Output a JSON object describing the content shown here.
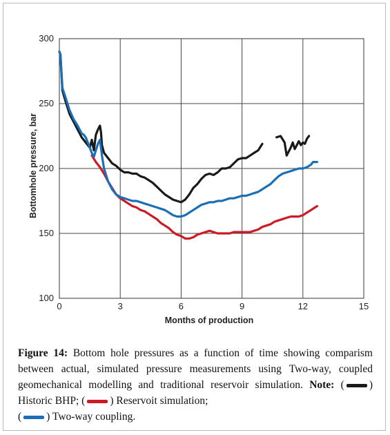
{
  "chart_data": {
    "type": "line",
    "xlabel": "Months of production",
    "ylabel": "Bottomhole pressure, bar",
    "xlim": [
      0,
      15
    ],
    "ylim": [
      100,
      300
    ],
    "xticks": [
      0,
      3,
      6,
      9,
      12,
      15
    ],
    "yticks": [
      100,
      150,
      200,
      250,
      300
    ],
    "grid": true,
    "series": [
      {
        "name": "Historic BHP",
        "color": "#1a1a1a",
        "segments": [
          [
            [
              0.0,
              290
            ],
            [
              0.05,
              288
            ],
            [
              0.15,
              260
            ],
            [
              0.3,
              252
            ],
            [
              0.5,
              242
            ],
            [
              0.7,
              236
            ],
            [
              0.9,
              230
            ],
            [
              1.0,
              227
            ],
            [
              1.1,
              224
            ],
            [
              1.2,
              222
            ],
            [
              1.3,
              220
            ],
            [
              1.4,
              218
            ],
            [
              1.5,
              216
            ],
            [
              1.6,
              222
            ],
            [
              1.7,
              214
            ],
            [
              1.8,
              226
            ],
            [
              1.9,
              230
            ],
            [
              2.0,
              233
            ],
            [
              2.05,
              228
            ],
            [
              2.1,
              218
            ],
            [
              2.2,
              212
            ],
            [
              2.4,
              208
            ],
            [
              2.6,
              204
            ],
            [
              2.8,
              202
            ],
            [
              3.0,
              199
            ],
            [
              3.2,
              197
            ],
            [
              3.4,
              197
            ],
            [
              3.6,
              196
            ],
            [
              3.8,
              196
            ],
            [
              4.0,
              194
            ],
            [
              4.2,
              193
            ],
            [
              4.4,
              191
            ],
            [
              4.6,
              189
            ],
            [
              4.8,
              186
            ],
            [
              5.0,
              183
            ],
            [
              5.2,
              180
            ],
            [
              5.4,
              178
            ],
            [
              5.6,
              176
            ],
            [
              5.8,
              175
            ],
            [
              6.0,
              174
            ],
            [
              6.2,
              176
            ],
            [
              6.4,
              180
            ],
            [
              6.6,
              185
            ],
            [
              6.8,
              188
            ],
            [
              7.0,
              192
            ],
            [
              7.2,
              195
            ],
            [
              7.4,
              196
            ],
            [
              7.6,
              195
            ],
            [
              7.8,
              197
            ],
            [
              8.0,
              200
            ],
            [
              8.2,
              200
            ],
            [
              8.4,
              201
            ],
            [
              8.6,
              204
            ],
            [
              8.8,
              207
            ],
            [
              9.0,
              208
            ],
            [
              9.2,
              208
            ],
            [
              9.4,
              210
            ],
            [
              9.6,
              212
            ],
            [
              9.8,
              214
            ],
            [
              10.0,
              219
            ]
          ],
          [
            [
              10.7,
              224
            ],
            [
              10.9,
              225
            ],
            [
              11.1,
              220
            ],
            [
              11.2,
              210
            ],
            [
              11.3,
              213
            ],
            [
              11.4,
              216
            ],
            [
              11.5,
              220
            ],
            [
              11.6,
              215
            ],
            [
              11.7,
              218
            ],
            [
              11.8,
              221
            ],
            [
              11.9,
              218
            ],
            [
              12.0,
              220
            ],
            [
              12.1,
              219
            ],
            [
              12.2,
              223
            ],
            [
              12.3,
              225
            ]
          ]
        ]
      },
      {
        "name": "Reservoit simulation",
        "color": "#cc1b24",
        "segments": [
          [
            [
              1.6,
              210
            ],
            [
              1.8,
              205
            ],
            [
              2.0,
              201
            ],
            [
              2.2,
              196
            ],
            [
              2.4,
              190
            ],
            [
              2.6,
              185
            ],
            [
              2.8,
              180
            ],
            [
              3.0,
              177
            ],
            [
              3.2,
              175
            ],
            [
              3.4,
              173
            ],
            [
              3.6,
              171
            ],
            [
              3.8,
              170
            ],
            [
              4.0,
              168
            ],
            [
              4.2,
              167
            ],
            [
              4.4,
              165
            ],
            [
              4.6,
              163
            ],
            [
              4.8,
              161
            ],
            [
              5.0,
              158
            ],
            [
              5.2,
              156
            ],
            [
              5.4,
              154
            ],
            [
              5.6,
              151
            ],
            [
              5.8,
              149
            ],
            [
              6.0,
              148
            ],
            [
              6.2,
              146
            ],
            [
              6.4,
              146
            ],
            [
              6.6,
              147
            ],
            [
              6.8,
              149
            ],
            [
              7.0,
              150
            ],
            [
              7.2,
              151
            ],
            [
              7.4,
              152
            ],
            [
              7.6,
              151
            ],
            [
              7.8,
              150
            ],
            [
              8.0,
              150
            ],
            [
              8.2,
              150
            ],
            [
              8.4,
              150
            ],
            [
              8.6,
              151
            ],
            [
              8.8,
              151
            ],
            [
              9.0,
              151
            ],
            [
              9.2,
              151
            ],
            [
              9.4,
              151
            ],
            [
              9.6,
              152
            ],
            [
              9.8,
              153
            ],
            [
              10.0,
              155
            ],
            [
              10.2,
              156
            ],
            [
              10.4,
              157
            ],
            [
              10.6,
              159
            ],
            [
              10.8,
              160
            ],
            [
              11.0,
              161
            ],
            [
              11.2,
              162
            ],
            [
              11.4,
              163
            ],
            [
              11.6,
              163
            ],
            [
              11.8,
              163
            ],
            [
              12.0,
              164
            ],
            [
              12.2,
              166
            ],
            [
              12.4,
              168
            ],
            [
              12.6,
              170
            ],
            [
              12.7,
              171
            ]
          ]
        ]
      },
      {
        "name": "Two-way coupling",
        "color": "#1a6fb8",
        "segments": [
          [
            [
              0.0,
              290
            ],
            [
              0.05,
              288
            ],
            [
              0.15,
              262
            ],
            [
              0.3,
              255
            ],
            [
              0.5,
              245
            ],
            [
              0.7,
              238
            ],
            [
              0.9,
              233
            ],
            [
              1.0,
              230
            ],
            [
              1.1,
              227
            ],
            [
              1.2,
              226
            ],
            [
              1.3,
              224
            ],
            [
              1.4,
              220
            ],
            [
              1.5,
              216
            ],
            [
              1.6,
              212
            ],
            [
              1.7,
              209
            ],
            [
              1.8,
              214
            ],
            [
              1.9,
              219
            ],
            [
              2.0,
              222
            ],
            [
              2.1,
              210
            ],
            [
              2.2,
              200
            ],
            [
              2.4,
              190
            ],
            [
              2.6,
              184
            ],
            [
              2.8,
              180
            ],
            [
              3.0,
              178
            ],
            [
              3.2,
              177
            ],
            [
              3.4,
              176
            ],
            [
              3.6,
              175
            ],
            [
              3.8,
              175
            ],
            [
              4.0,
              174
            ],
            [
              4.2,
              173
            ],
            [
              4.4,
              172
            ],
            [
              4.6,
              171
            ],
            [
              4.8,
              170
            ],
            [
              5.0,
              169
            ],
            [
              5.2,
              168
            ],
            [
              5.4,
              166
            ],
            [
              5.6,
              164
            ],
            [
              5.8,
              163
            ],
            [
              6.0,
              163
            ],
            [
              6.2,
              164
            ],
            [
              6.4,
              166
            ],
            [
              6.6,
              168
            ],
            [
              6.8,
              170
            ],
            [
              7.0,
              172
            ],
            [
              7.2,
              173
            ],
            [
              7.4,
              174
            ],
            [
              7.6,
              174
            ],
            [
              7.8,
              175
            ],
            [
              8.0,
              175
            ],
            [
              8.2,
              176
            ],
            [
              8.4,
              177
            ],
            [
              8.6,
              177
            ],
            [
              8.8,
              178
            ],
            [
              9.0,
              179
            ],
            [
              9.2,
              179
            ],
            [
              9.4,
              180
            ],
            [
              9.6,
              181
            ],
            [
              9.8,
              182
            ],
            [
              10.0,
              184
            ],
            [
              10.2,
              186
            ],
            [
              10.4,
              188
            ],
            [
              10.6,
              191
            ],
            [
              10.8,
              194
            ],
            [
              11.0,
              196
            ],
            [
              11.2,
              197
            ],
            [
              11.4,
              198
            ],
            [
              11.6,
              199
            ],
            [
              11.8,
              200
            ],
            [
              12.0,
              200
            ],
            [
              12.2,
              201
            ],
            [
              12.4,
              203
            ],
            [
              12.5,
              205
            ],
            [
              12.7,
              205
            ]
          ]
        ]
      }
    ]
  },
  "caption": {
    "label": "Figure 14:",
    "text": " Bottom hole pressures as a function of time showing comparism between actual, simulated pressure measurements using Two-way, coupled geomechanical modelling and traditional reservoir simulation. ",
    "note_label": "Note:",
    "open1": " (",
    "item1": ") Historic BHP; (",
    "item2": ") Reservoit simulation;",
    "open3": "(",
    "item3": ") Two-way coupling.",
    "colors": [
      "#1a1a1a",
      "#cc1b24",
      "#1a6fb8"
    ]
  }
}
